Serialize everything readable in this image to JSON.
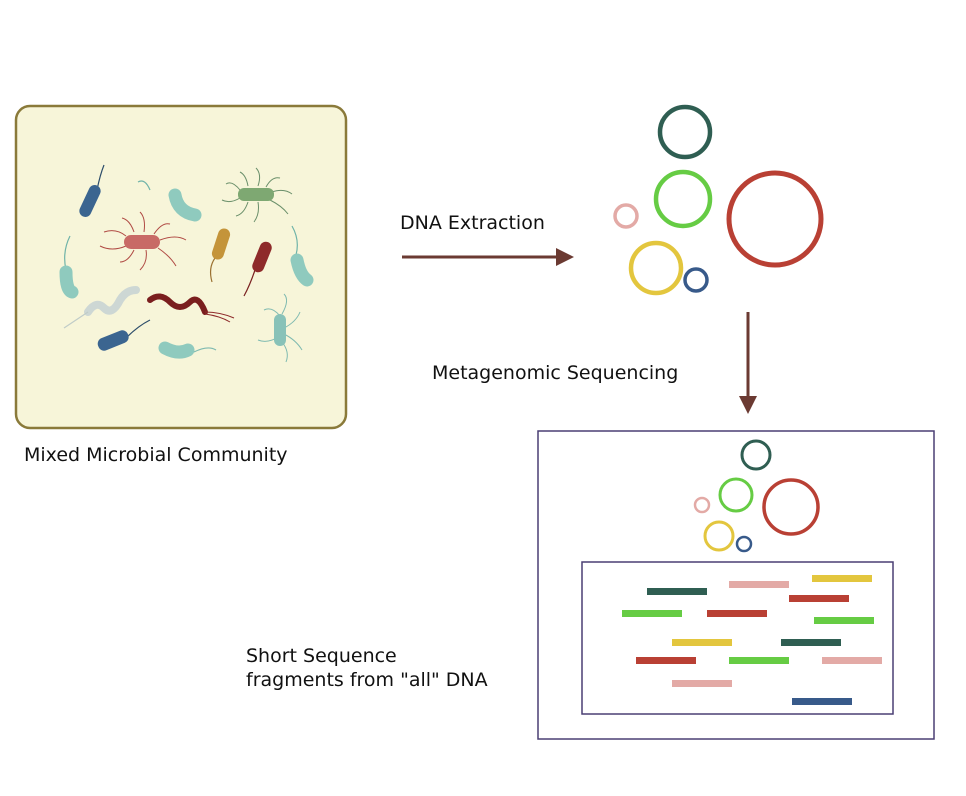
{
  "labels": {
    "community": "Mixed Microbial Community",
    "extraction": "DNA Extraction",
    "sequencing": "Metagenomic Sequencing",
    "fragments_line1": "Short Sequence",
    "fragments_line2": "fragments from \"all\" DNA"
  },
  "colors": {
    "arrow": "#6b3a32",
    "community_bg": "#f7f5d9",
    "community_border": "#8a7a3a",
    "box_border": "#4a3f74",
    "dark_green": "#2f5e52",
    "light_green": "#66cc44",
    "red": "#b94034",
    "pink": "#e3aaa6",
    "yellow": "#e3c63e",
    "blue": "#385a8a"
  }
}
